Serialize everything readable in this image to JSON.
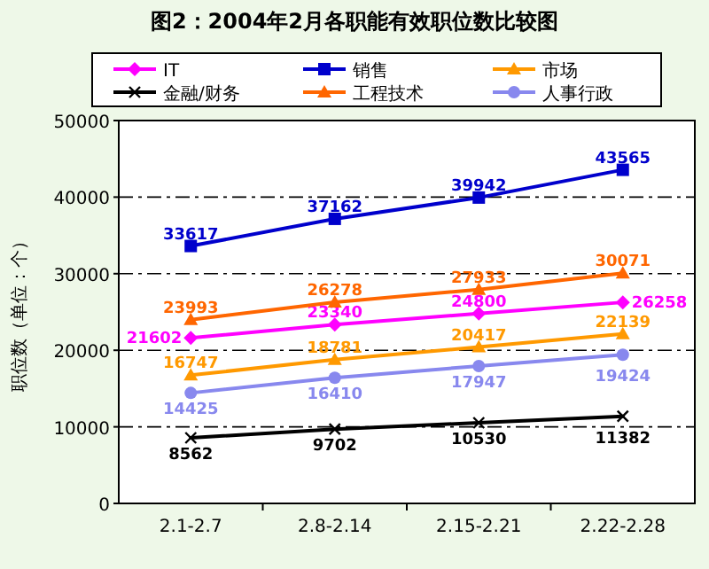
{
  "chart_data": {
    "type": "line",
    "title": "图2：2004年2月各职能有效职位数比较图",
    "ylabel": "职位数（单位：个）",
    "categories": [
      "2.1-2.7",
      "2.8-2.14",
      "2.15-2.21",
      "2.22-2.28"
    ],
    "ylim": [
      0,
      50000
    ],
    "yticks": [
      0,
      10000,
      20000,
      30000,
      40000,
      50000
    ],
    "grid": "y",
    "legend": "top",
    "data_labels": true,
    "line_style": "solid",
    "series": [
      {
        "name": "IT",
        "color": "#ff00ff",
        "marker": "diamond",
        "values": [
          21602,
          23340,
          24800,
          26258
        ]
      },
      {
        "name": "销售",
        "color": "#0000cc",
        "marker": "square",
        "values": [
          33617,
          37162,
          39942,
          43565
        ]
      },
      {
        "name": "市场",
        "color": "#ff9900",
        "marker": "triangle",
        "values": [
          16747,
          18781,
          20417,
          22139
        ]
      },
      {
        "name": "金融/财务",
        "color": "#000000",
        "marker": "cross",
        "values": [
          8562,
          9702,
          10530,
          11382
        ]
      },
      {
        "name": "工程技术",
        "color": "#ff6600",
        "marker": "triangle",
        "values": [
          23993,
          26278,
          27933,
          30071
        ]
      },
      {
        "name": "人事行政",
        "color": "#8888ee",
        "marker": "circle",
        "values": [
          14425,
          16410,
          17947,
          19424
        ]
      }
    ]
  }
}
